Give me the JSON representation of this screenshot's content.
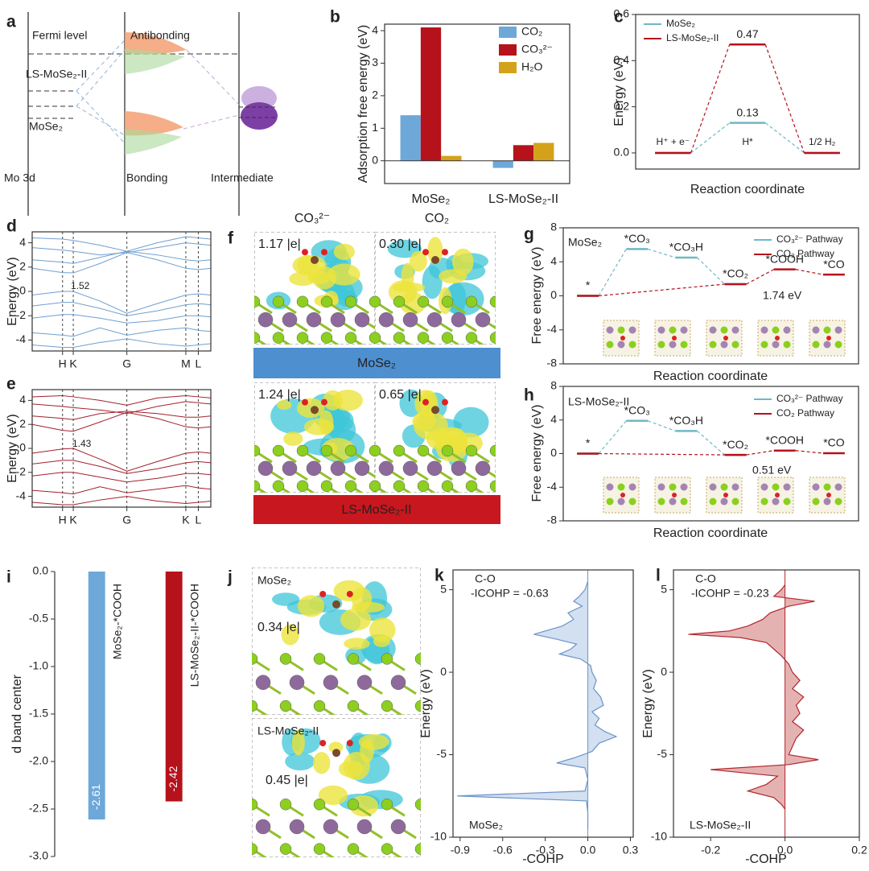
{
  "chart_data": [
    {
      "label": "b",
      "type": "bar",
      "ylabel": "Adsorption free energy (eV)",
      "categories": [
        "MoSe₂",
        "LS-MoSe₂-II"
      ],
      "series": [
        {
          "name": "CO₂",
          "color": "#6ea8d9",
          "values": [
            1.4,
            -0.22
          ]
        },
        {
          "name": "CO₃²⁻",
          "color": "#b5121b",
          "values": [
            4.1,
            0.48
          ]
        },
        {
          "name": "H₂O",
          "color": "#d4a21a",
          "values": [
            0.15,
            0.55
          ]
        }
      ],
      "ylim": [
        -0.7,
        4.2
      ],
      "yticks": [
        0,
        1,
        2,
        3,
        4
      ],
      "legend": "upper right"
    },
    {
      "label": "c",
      "type": "step",
      "ylabel": "Energy (eV)",
      "xlabel": "Reaction coordinate",
      "categories": [
        "H⁺ + e⁻",
        "H*",
        "1/2 H₂"
      ],
      "series": [
        {
          "name": "MoSe₂",
          "color": "#6fb8c6",
          "values": [
            0,
            0.13,
            0
          ]
        },
        {
          "name": "LS-MoSe₂-II",
          "color": "#b5121b",
          "values": [
            0,
            0.47,
            0
          ]
        }
      ],
      "ylim": [
        -0.07,
        0.6
      ],
      "yticks": [
        {
          "value": 0,
          "label": "0.0"
        },
        0.2,
        0.4,
        0.6
      ],
      "legend": "upper left"
    },
    {
      "label": "d",
      "type": "band",
      "ylabel": "Energy (eV)",
      "annotation": "1.52",
      "color": "#6f9fd0",
      "x": [
        0,
        0.17,
        0.23,
        0.38,
        0.53,
        0.7,
        0.86,
        0.93,
        1
      ],
      "series": [
        {
          "values": [
            1.9,
            1.55,
            1.52,
            2.3,
            3.2,
            2.6,
            1.9,
            1.8,
            1.9
          ]
        },
        {
          "values": [
            2.6,
            2.4,
            2.3,
            2.8,
            3.3,
            3.0,
            2.6,
            2.5,
            2.6
          ]
        },
        {
          "values": [
            3.6,
            3.4,
            3.3,
            3.0,
            3.2,
            3.6,
            4.0,
            3.9,
            3.8
          ]
        },
        {
          "values": [
            4.4,
            4.3,
            4.2,
            3.8,
            3.3,
            4.0,
            4.5,
            4.4,
            4.3
          ]
        },
        {
          "values": [
            -0.3,
            0,
            0,
            -0.8,
            -1.8,
            -1.0,
            -0.3,
            -0.2,
            -0.3
          ]
        },
        {
          "values": [
            -1.2,
            -0.9,
            -0.9,
            -1.4,
            -2.0,
            -1.6,
            -1.1,
            -1.0,
            -1.1
          ]
        },
        {
          "values": [
            -2.2,
            -1.9,
            -1.9,
            -2.2,
            -2.6,
            -2.4,
            -2.0,
            -2.0,
            -2.1
          ]
        },
        {
          "values": [
            -3.4,
            -3.6,
            -3.7,
            -3.0,
            -3.6,
            -3.2,
            -3.0,
            -3.2,
            -3.3
          ]
        },
        {
          "values": [
            -4.4,
            -4.6,
            -4.6,
            -4.2,
            -3.9,
            -4.3,
            -4.5,
            -4.4,
            -4.3
          ]
        }
      ],
      "xlim": [
        0,
        1
      ],
      "xticks": [
        {
          "value": 0.17,
          "label": "H"
        },
        {
          "value": 0.23,
          "label": "K"
        },
        {
          "value": 0.53,
          "label": "G"
        },
        {
          "value": 0.86,
          "label": "M"
        },
        {
          "value": 0.93,
          "label": "L"
        }
      ],
      "ylim": [
        -4.9,
        4.9
      ],
      "yticks": [
        -4,
        -2,
        0,
        2,
        4
      ],
      "grid": true
    },
    {
      "label": "e",
      "type": "band",
      "ylabel": "Energy (eV)",
      "annotation": "1.43",
      "color": "#a3202c",
      "x": [
        0,
        0.17,
        0.23,
        0.38,
        0.53,
        0.7,
        0.86,
        0.93,
        1
      ],
      "series": [
        {
          "values": [
            2.0,
            1.5,
            1.43,
            2.2,
            3.0,
            2.5,
            1.8,
            1.7,
            1.8
          ]
        },
        {
          "values": [
            2.7,
            2.5,
            2.4,
            2.9,
            3.1,
            2.9,
            2.6,
            2.6,
            2.7
          ]
        },
        {
          "values": [
            3.7,
            3.5,
            3.4,
            3.2,
            2.9,
            3.5,
            3.9,
            3.8,
            3.7
          ]
        },
        {
          "values": [
            4.3,
            4.4,
            4.3,
            4.0,
            3.6,
            4.2,
            4.4,
            4.3,
            4.2
          ]
        },
        {
          "values": [
            -0.4,
            -0.05,
            0,
            -0.9,
            -1.9,
            -1.1,
            -0.4,
            -0.3,
            -0.4
          ]
        },
        {
          "values": [
            -1.3,
            -1.0,
            -1.0,
            -1.5,
            -2.1,
            -1.7,
            -1.2,
            -1.1,
            -1.2
          ]
        },
        {
          "values": [
            -2.3,
            -2.0,
            -2.0,
            -2.4,
            -2.8,
            -2.5,
            -2.1,
            -2.1,
            -2.2
          ]
        },
        {
          "values": [
            -3.5,
            -3.7,
            -3.8,
            -3.2,
            -3.7,
            -3.4,
            -3.1,
            -3.3,
            -3.4
          ]
        },
        {
          "values": [
            -4.5,
            -4.7,
            -4.7,
            -4.3,
            -4.0,
            -4.4,
            -4.6,
            -4.5,
            -4.4
          ]
        }
      ],
      "xlim": [
        0,
        1
      ],
      "xticks": [
        {
          "value": 0.17,
          "label": "H"
        },
        {
          "value": 0.23,
          "label": "K"
        },
        {
          "value": 0.53,
          "label": "G"
        },
        {
          "value": 0.86,
          "label": "K"
        },
        {
          "value": 0.93,
          "label": "L"
        }
      ],
      "ylim": [
        -4.9,
        4.9
      ],
      "yticks": [
        -4,
        -2,
        0,
        2,
        4
      ],
      "grid": true
    },
    {
      "label": "g",
      "type": "step",
      "subtitle": "MoSe₂",
      "ylabel": "Free energy (eV)",
      "xlabel": "Reaction coordinate",
      "annotation": "1.74 eV",
      "categories": [
        "*",
        "*CO₃",
        "*CO₃H",
        "*CO₂",
        "*COOH",
        "*CO"
      ],
      "series": [
        {
          "name": "CO₃²⁻ Pathway",
          "color": "#6fb8c6",
          "values": [
            0,
            5.5,
            4.5,
            1.37,
            null,
            null
          ]
        },
        {
          "name": "CO₂  Pathway",
          "color": "#b5121b",
          "values": [
            0,
            null,
            null,
            1.37,
            3.11,
            2.5
          ]
        }
      ],
      "ylim": [
        -8,
        8
      ],
      "yticks": [
        -8,
        -4,
        0,
        4,
        8
      ],
      "legend": "upper right"
    },
    {
      "label": "h",
      "type": "step",
      "subtitle": "LS-MoSe₂-II",
      "ylabel": "Free energy (eV)",
      "xlabel": "Reaction coordinate",
      "annotation": "0.51 eV",
      "categories": [
        "*",
        "*CO₃",
        "*CO₃H",
        "*CO₂",
        "*COOH",
        "*CO"
      ],
      "series": [
        {
          "name": "CO₃²⁻ Pathway",
          "color": "#6fb8c6",
          "values": [
            0,
            3.9,
            2.7,
            -0.15,
            null,
            null
          ]
        },
        {
          "name": "CO₂  Pathway",
          "color": "#b5121b",
          "values": [
            0,
            null,
            null,
            -0.15,
            0.36,
            0.05
          ]
        }
      ],
      "ylim": [
        -8,
        8
      ],
      "yticks": [
        -8,
        -4,
        0,
        4,
        8
      ],
      "legend": "upper right"
    },
    {
      "label": "i",
      "type": "bar",
      "ylabel": "d band center",
      "categories": [
        "MoSe₂-*COOH",
        "LS-MoSe₂-II-*COOH"
      ],
      "values": [
        -2.61,
        -2.42
      ],
      "colors": [
        "#6ea8d9",
        "#b5121b"
      ],
      "ylim": [
        -3.0,
        0.0
      ],
      "yticks": [
        {
          "value": -3,
          "label": "-3.0"
        },
        -2.5,
        {
          "value": -2,
          "label": "-2.0"
        },
        -1.5,
        {
          "value": -1,
          "label": "-1.0"
        },
        -0.5,
        {
          "value": 0,
          "label": "0.0"
        }
      ]
    },
    {
      "label": "k",
      "type": "cohp",
      "title": "C-O",
      "subtitle": "-ICOHP = -0.63",
      "note": "MoSe₂",
      "xlabel": "-COHP",
      "ylabel": "Energy (eV)",
      "color": "#6d93c8",
      "fill": "#c3d5ec",
      "energy": [
        5.5,
        5,
        4.6,
        4.3,
        4,
        3.6,
        3.2,
        2.8,
        2.5,
        2.3,
        2.0,
        1.7,
        1.4,
        1.1,
        0.8,
        0.4,
        0,
        -0.5,
        -1,
        -1.5,
        -2,
        -2.4,
        -2.8,
        -3.2,
        -3.6,
        -3.9,
        -4.3,
        -4.8,
        -5.2,
        -5.5,
        -5.8,
        -6.5,
        -7.2,
        -7.5,
        -7.8,
        -8.5,
        -9.5
      ],
      "values": [
        0,
        -0.02,
        -0.06,
        -0.1,
        -0.04,
        -0.14,
        -0.1,
        -0.18,
        -0.3,
        -0.38,
        -0.22,
        -0.08,
        -0.12,
        -0.2,
        -0.05,
        0.02,
        0.03,
        0.06,
        0.04,
        0.09,
        0.11,
        0.03,
        0.08,
        0.05,
        0.12,
        0.2,
        0.08,
        0.03,
        -0.1,
        -0.22,
        -0.02,
        0,
        -0.02,
        -0.92,
        -0.01,
        0,
        0
      ],
      "xlim": [
        -0.95,
        0.32
      ],
      "xticks": [
        -0.9,
        -0.6,
        -0.3,
        {
          "value": 0,
          "label": "0.0"
        },
        0.3
      ],
      "ylim": [
        -10,
        6.2
      ],
      "yticks": [
        -10,
        -5,
        0,
        5
      ]
    },
    {
      "label": "l",
      "type": "cohp",
      "title": "C-O",
      "subtitle": "-ICOHP = -0.23",
      "note": "LS-MoSe₂-II",
      "xlabel": "-COHP",
      "ylabel": "Energy (eV)",
      "color": "#b2262e",
      "fill": "#dc9898",
      "energy": [
        5.3,
        5,
        4.6,
        4.3,
        4,
        3.6,
        3.2,
        2.8,
        2.5,
        2.3,
        2.1,
        1.8,
        1.4,
        1,
        0.5,
        0,
        -0.5,
        -1,
        -1.5,
        -2,
        -2.5,
        -3,
        -3.5,
        -4,
        -4.5,
        -5,
        -5.3,
        -5.6,
        -5.9,
        -6.3,
        -6.8,
        -7.2,
        -7.6,
        -8,
        -8.3
      ],
      "values": [
        0,
        -0.01,
        -0.03,
        0.08,
        0.01,
        -0.04,
        -0.06,
        -0.1,
        -0.15,
        -0.26,
        -0.12,
        -0.05,
        -0.03,
        -0.01,
        0.01,
        0.02,
        0.04,
        0.02,
        0.05,
        0.03,
        0.04,
        0.02,
        0.05,
        0.03,
        0.02,
        0.01,
        0.09,
        0.01,
        -0.2,
        -0.02,
        -0.05,
        -0.1,
        -0.03,
        -0.01,
        0
      ],
      "xlim": [
        -0.3,
        0.2
      ],
      "xticks": [
        -0.2,
        {
          "value": 0,
          "label": "0.0"
        },
        0.2
      ],
      "ylim": [
        -10,
        6.2
      ],
      "yticks": [
        -10,
        -5,
        0,
        5
      ]
    }
  ],
  "diagram_a": {
    "label": "a",
    "fermi": "Fermi level",
    "antibonding": "Antibonding",
    "ls": "LS-MoSe₂-II",
    "mose2": "MoSe₂",
    "mo3d": "Mo 3d",
    "bonding": "Bonding",
    "intermediate": "Intermediate"
  },
  "figure_f": {
    "label": "f",
    "columns": [
      "CO₃²⁻",
      "CO₂"
    ],
    "charges": [
      [
        "1.17 |e|",
        "0.30 |e|"
      ],
      [
        "1.24 |e|",
        "0.65 |e|"
      ]
    ],
    "substrates": [
      "MoSe₂",
      "LS-MoSe₂-II"
    ]
  },
  "figure_j": {
    "label": "j",
    "panels": [
      {
        "name": "MoSe₂",
        "charge": "0.34 |e|"
      },
      {
        "name": "LS-MoSe₂-II",
        "charge": "0.45 |e|"
      }
    ]
  }
}
